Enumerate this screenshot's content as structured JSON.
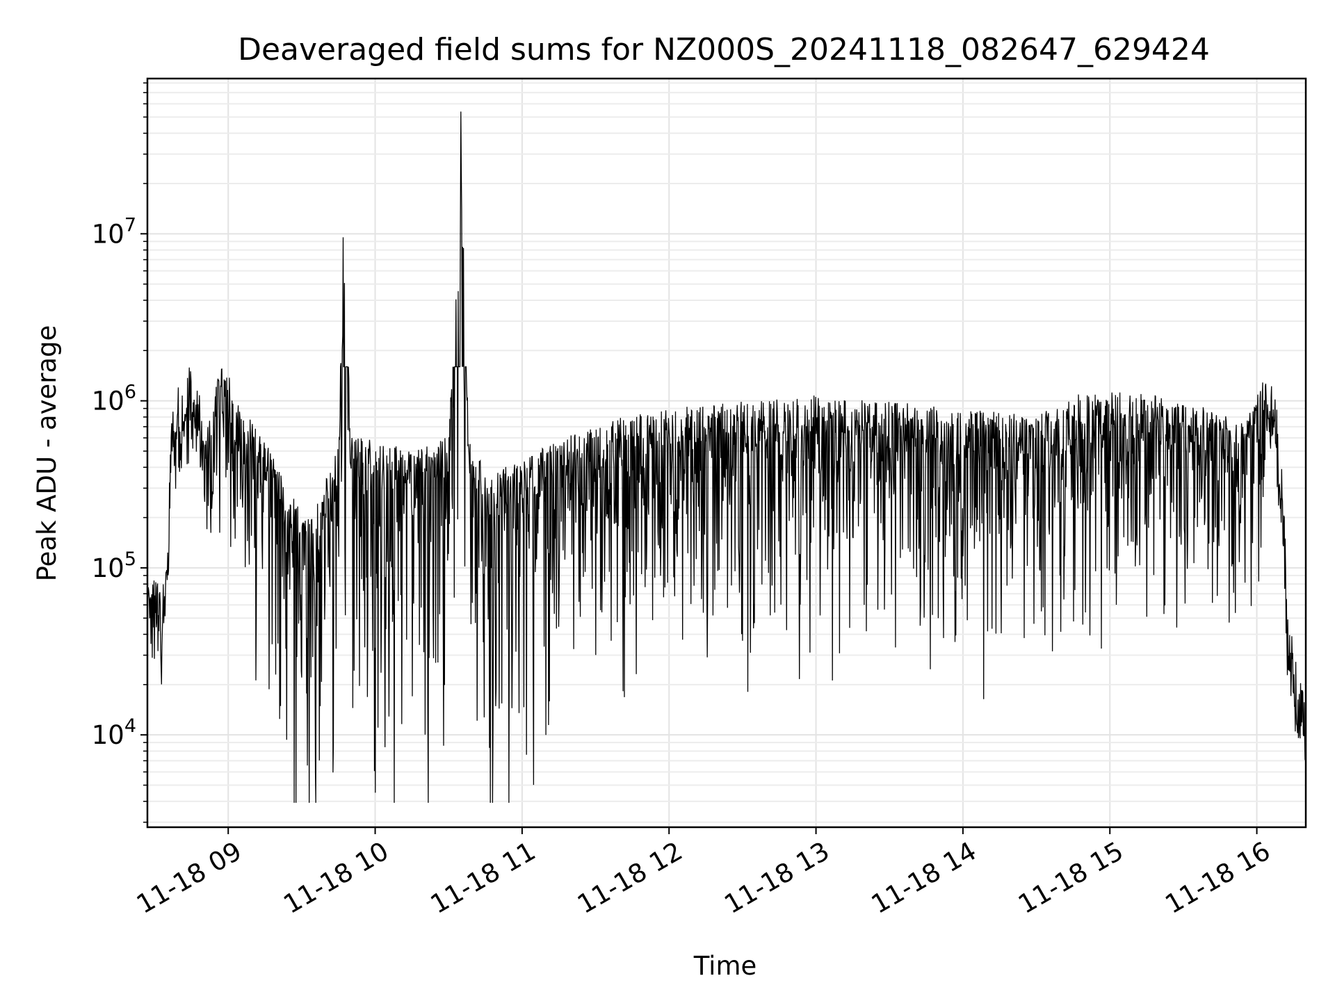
{
  "chart_data": {
    "type": "line",
    "title": "Deaveraged field sums for NZ000S_20241118_082647_629424",
    "xlabel": "Time",
    "ylabel": "Peak ADU - average",
    "x_scale": "time",
    "y_scale": "log",
    "xlim": [
      "2024-11-18 08:27",
      "2024-11-18 16:20"
    ],
    "ylim": [
      2800,
      85000000
    ],
    "grid": true,
    "x_ticks": [
      "11-18 09",
      "11-18 10",
      "11-18 11",
      "11-18 12",
      "11-18 13",
      "11-18 14",
      "11-18 15",
      "11-18 16"
    ],
    "y_ticks": [
      {
        "base": "10",
        "exp": "4",
        "value": 10000
      },
      {
        "base": "10",
        "exp": "5",
        "value": 100000
      },
      {
        "base": "10",
        "exp": "6",
        "value": 1000000
      },
      {
        "base": "10",
        "exp": "7",
        "value": 10000000
      }
    ],
    "line_color": "#000000",
    "series": [
      {
        "x": [
          "2024-11-18 08:27",
          "2024-11-18 08:28",
          "2024-11-18 08:30",
          "2024-11-18 08:33",
          "2024-11-18 08:35",
          "2024-11-18 08:37",
          "2024-11-18 08:40",
          "2024-11-18 08:42",
          "2024-11-18 08:45",
          "2024-11-18 08:48",
          "2024-11-18 08:50",
          "2024-11-18 08:53",
          "2024-11-18 08:56",
          "2024-11-18 09:00",
          "2024-11-18 09:05",
          "2024-11-18 09:15",
          "2024-11-18 09:25",
          "2024-11-18 09:35",
          "2024-11-18 09:45",
          "2024-11-18 09:47",
          "2024-11-18 09:50",
          "2024-11-18 10:00",
          "2024-11-18 10:15",
          "2024-11-18 10:30",
          "2024-11-18 10:35",
          "2024-11-18 10:38",
          "2024-11-18 10:45",
          "2024-11-18 11:00",
          "2024-11-18 11:20",
          "2024-11-18 11:40",
          "2024-11-18 12:00",
          "2024-11-18 12:30",
          "2024-11-18 13:00",
          "2024-11-18 13:30",
          "2024-11-18 14:00",
          "2024-11-18 14:30",
          "2024-11-18 14:45",
          "2024-11-18 15:00",
          "2024-11-18 15:20",
          "2024-11-18 15:40",
          "2024-11-18 15:55",
          "2024-11-18 16:03",
          "2024-11-18 16:07",
          "2024-11-18 16:10",
          "2024-11-18 16:13",
          "2024-11-18 16:16",
          "2024-11-18 16:20"
        ],
        "y": [
          45000,
          42000,
          55000,
          40000,
          70000,
          500000,
          700000,
          850000,
          900000,
          700000,
          350000,
          450000,
          900000,
          800000,
          500000,
          350000,
          150000,
          120000,
          300000,
          11000000,
          350000,
          320000,
          280000,
          350000,
          55000000,
          400000,
          200000,
          250000,
          350000,
          450000,
          500000,
          550000,
          600000,
          550000,
          500000,
          450000,
          600000,
          650000,
          600000,
          500000,
          400000,
          750000,
          700000,
          300000,
          30000,
          15000,
          9000
        ]
      }
    ]
  }
}
